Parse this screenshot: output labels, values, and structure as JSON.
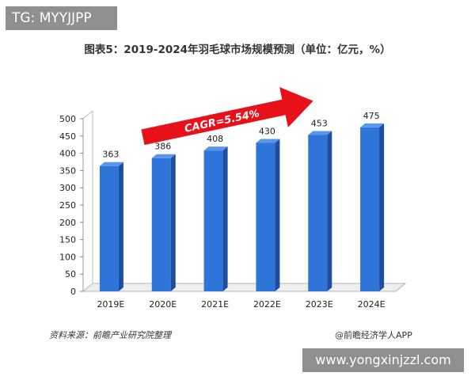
{
  "badge": {
    "text": "TG: MYYJJPP"
  },
  "chart_data": {
    "type": "bar",
    "title": "图表5：2019-2024年羽毛球市场规模预测（单位：亿元，%）",
    "categories": [
      "2019E",
      "2020E",
      "2021E",
      "2022E",
      "2023E",
      "2024E"
    ],
    "values": [
      363,
      386,
      408,
      430,
      453,
      475
    ],
    "ylim": [
      0,
      500
    ],
    "yticks": [
      0,
      50,
      100,
      150,
      200,
      250,
      300,
      350,
      400,
      450,
      500
    ],
    "grid": false,
    "annotation": "CAGR=5.54%",
    "bar_color": "#2f74d8",
    "arrow_color": "#e8111a"
  },
  "footer": {
    "source": "资料来源：前瞻产业研究院整理",
    "brand": "@前瞻经济学人APP"
  },
  "watermark": {
    "text": "www.yongxinjzzl.com"
  }
}
